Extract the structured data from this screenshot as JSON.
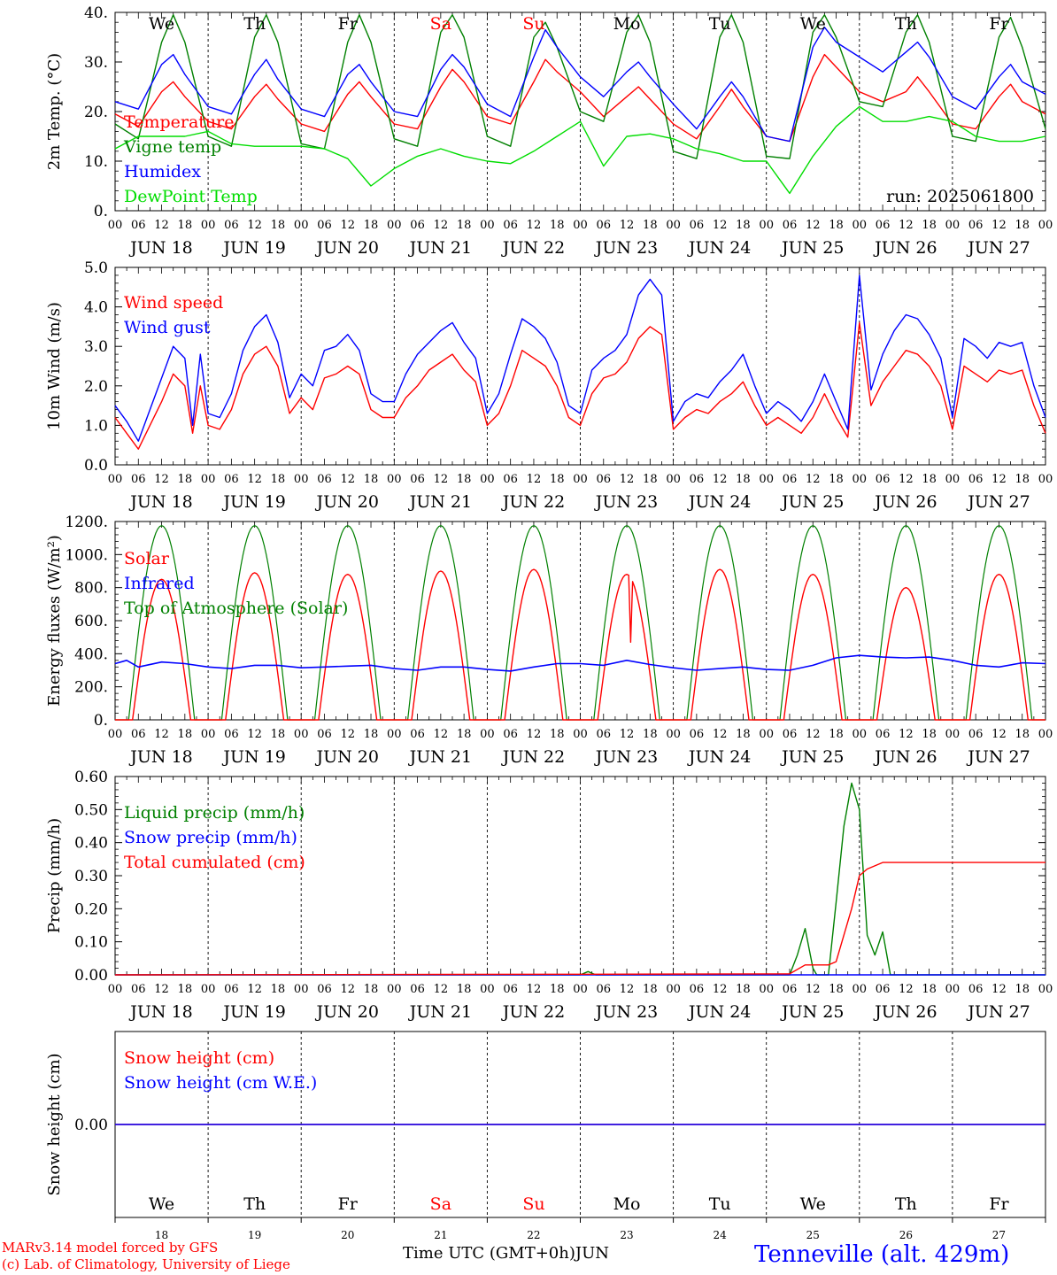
{
  "colors": {
    "red": "#ff0000",
    "green": "#008000",
    "blue": "#0000ff",
    "lime": "#00dd00",
    "weekend": "#ff0000",
    "weekday": "#000000"
  },
  "hour_labels": [
    "00",
    "06",
    "12",
    "18"
  ],
  "final_hour_label": "00",
  "date_labels": [
    "JUN 18",
    "JUN 19",
    "JUN 20",
    "JUN 21",
    "JUN 22",
    "JUN 23",
    "JUN 24",
    "JUN 25",
    "JUN 26",
    "JUN 27"
  ],
  "day_names": [
    "We",
    "Th",
    "Fr",
    "Sa",
    "Su",
    "Mo",
    "Tu",
    "We",
    "Th",
    "Fr"
  ],
  "weekend_flags": [
    false,
    false,
    false,
    true,
    true,
    false,
    false,
    false,
    false,
    false
  ],
  "day_numbers": [
    "18",
    "19",
    "20",
    "21",
    "22",
    "23",
    "24",
    "25",
    "26",
    "27"
  ],
  "run_label": "run: 2025061800",
  "footer": {
    "model": "MARv3.14 model forced by GFS",
    "lab": "(c) Lab. of Climatology, University of Liege",
    "xlabel": "Time UTC (GMT+0h)",
    "month": "JUN",
    "station": "Tenneville (alt. 429m)"
  },
  "chart_data": [
    {
      "type": "line",
      "ylabel": "2m Temp. (°C)",
      "ylim": [
        0,
        40
      ],
      "yticks": [
        "0.",
        "10.",
        "20.",
        "30.",
        "40."
      ],
      "series": [
        {
          "name": "Temperature",
          "color": "red",
          "x": [
            0,
            6,
            12,
            15,
            18,
            24,
            30,
            36,
            39,
            42,
            48,
            54,
            60,
            63,
            66,
            72,
            78,
            84,
            87,
            90,
            96,
            102,
            108,
            111,
            114,
            120,
            126,
            132,
            135,
            138,
            144,
            150,
            156,
            159,
            162,
            168,
            174,
            180,
            183,
            186,
            192,
            198,
            204,
            207,
            210,
            216,
            222,
            228,
            231,
            234,
            240
          ],
          "y": [
            19.5,
            17,
            24,
            26,
            23,
            18,
            16.5,
            23,
            25.5,
            22.5,
            17.5,
            16,
            23.5,
            26,
            23,
            17.5,
            16.5,
            25,
            28.5,
            26,
            19,
            17.5,
            26,
            30.5,
            28,
            24,
            19,
            23,
            25,
            22.5,
            17.5,
            14.5,
            21,
            24.5,
            21,
            15,
            14,
            27,
            31.5,
            29,
            24,
            22,
            24,
            27,
            24,
            17.5,
            16.5,
            23,
            25.5,
            22,
            19.5
          ]
        },
        {
          "name": "Vigne temp",
          "color": "green",
          "x": [
            0,
            6,
            12,
            15,
            18,
            24,
            30,
            36,
            39,
            42,
            48,
            54,
            60,
            63,
            66,
            72,
            78,
            84,
            87,
            90,
            96,
            102,
            108,
            111,
            114,
            120,
            126,
            132,
            135,
            138,
            144,
            150,
            156,
            159,
            162,
            168,
            174,
            180,
            183,
            186,
            192,
            198,
            204,
            207,
            210,
            216,
            222,
            228,
            231,
            234,
            240
          ],
          "y": [
            17.5,
            14.5,
            34,
            39.5,
            34,
            15,
            13,
            35,
            39.5,
            34,
            13.5,
            12.5,
            34,
            39.5,
            34,
            14.5,
            13,
            36,
            39.5,
            35,
            15,
            13,
            35,
            38,
            33,
            20,
            18,
            36,
            39.5,
            34,
            12,
            10.5,
            35,
            39.5,
            34,
            11,
            10.5,
            36,
            39.5,
            35,
            22,
            21,
            36,
            39.5,
            34,
            15,
            14,
            35,
            39,
            33,
            16.5
          ]
        },
        {
          "name": "Humidex",
          "color": "blue",
          "x": [
            0,
            6,
            12,
            15,
            18,
            24,
            30,
            36,
            39,
            42,
            48,
            54,
            60,
            63,
            66,
            72,
            78,
            84,
            87,
            90,
            96,
            102,
            108,
            111,
            114,
            120,
            126,
            132,
            135,
            138,
            144,
            150,
            156,
            159,
            162,
            168,
            174,
            180,
            183,
            186,
            192,
            198,
            204,
            207,
            210,
            216,
            222,
            228,
            231,
            234,
            240
          ],
          "y": [
            22,
            20.5,
            29.5,
            31.5,
            27.5,
            21,
            19.5,
            27.5,
            30.5,
            26.5,
            20.5,
            19,
            27.5,
            29.5,
            26,
            20,
            19,
            28.5,
            31.5,
            29,
            21.5,
            19,
            31,
            36.5,
            33,
            27,
            23,
            28,
            30,
            27,
            21.5,
            16.5,
            23,
            26,
            23,
            15,
            14,
            33,
            37,
            34,
            31,
            28,
            32,
            34,
            31,
            23,
            20.5,
            27,
            29.5,
            26,
            23.5
          ]
        },
        {
          "name": "DewPoint Temp",
          "color": "lime",
          "x": [
            0,
            6,
            12,
            18,
            24,
            30,
            36,
            42,
            48,
            54,
            60,
            66,
            72,
            78,
            84,
            90,
            96,
            102,
            108,
            114,
            120,
            126,
            132,
            138,
            144,
            150,
            156,
            162,
            168,
            174,
            180,
            186,
            192,
            198,
            204,
            210,
            216,
            222,
            228,
            234,
            240
          ],
          "y": [
            12.5,
            15,
            15,
            15,
            16,
            13.5,
            13,
            13,
            13,
            12.5,
            10.5,
            5,
            8.5,
            11,
            12.5,
            11,
            10,
            9.5,
            12,
            15,
            18,
            9,
            15,
            15.5,
            14.5,
            12.5,
            11.5,
            10,
            10,
            3.5,
            11,
            17,
            21,
            18,
            18,
            19,
            18,
            15,
            14,
            14,
            15
          ]
        }
      ]
    },
    {
      "type": "line",
      "ylabel": "10m Wind (m/s)",
      "ylim": [
        0,
        5
      ],
      "yticks": [
        "0.0",
        "1.0",
        "2.0",
        "3.0",
        "4.0",
        "5.0"
      ],
      "series": [
        {
          "name": "Wind speed",
          "color": "red",
          "x": [
            0,
            3,
            6,
            9,
            12,
            15,
            18,
            20,
            22,
            24,
            27,
            30,
            33,
            36,
            39,
            42,
            45,
            48,
            51,
            54,
            57,
            60,
            63,
            66,
            69,
            72,
            75,
            78,
            81,
            84,
            87,
            90,
            93,
            96,
            99,
            102,
            105,
            108,
            111,
            114,
            117,
            120,
            123,
            126,
            129,
            132,
            135,
            138,
            141,
            144,
            147,
            150,
            153,
            156,
            159,
            162,
            165,
            168,
            171,
            174,
            177,
            180,
            183,
            186,
            189,
            192,
            195,
            198,
            201,
            204,
            207,
            210,
            213,
            216,
            219,
            222,
            225,
            228,
            231,
            234,
            237,
            240
          ],
          "y": [
            1.2,
            0.8,
            0.4,
            1.0,
            1.6,
            2.3,
            2.0,
            0.8,
            2.0,
            1.0,
            0.9,
            1.4,
            2.3,
            2.8,
            3.0,
            2.5,
            1.3,
            1.7,
            1.4,
            2.2,
            2.3,
            2.5,
            2.3,
            1.4,
            1.2,
            1.2,
            1.7,
            2.0,
            2.4,
            2.6,
            2.8,
            2.4,
            2.1,
            1.0,
            1.3,
            2.0,
            2.9,
            2.7,
            2.5,
            2.0,
            1.2,
            1.0,
            1.8,
            2.2,
            2.3,
            2.6,
            3.2,
            3.5,
            3.3,
            0.9,
            1.2,
            1.4,
            1.3,
            1.6,
            1.8,
            2.1,
            1.5,
            1.0,
            1.2,
            1.0,
            0.8,
            1.2,
            1.8,
            1.2,
            0.7,
            3.6,
            1.5,
            2.1,
            2.5,
            2.9,
            2.8,
            2.5,
            2.0,
            0.9,
            2.5,
            2.3,
            2.1,
            2.4,
            2.3,
            2.4,
            1.5,
            0.8
          ]
        },
        {
          "name": "Wind gust",
          "color": "blue",
          "x": [
            0,
            3,
            6,
            9,
            12,
            15,
            18,
            20,
            22,
            24,
            27,
            30,
            33,
            36,
            39,
            42,
            45,
            48,
            51,
            54,
            57,
            60,
            63,
            66,
            69,
            72,
            75,
            78,
            81,
            84,
            87,
            90,
            93,
            96,
            99,
            102,
            105,
            108,
            111,
            114,
            117,
            120,
            123,
            126,
            129,
            132,
            135,
            138,
            141,
            144,
            147,
            150,
            153,
            156,
            159,
            162,
            165,
            168,
            171,
            174,
            177,
            180,
            183,
            186,
            189,
            192,
            195,
            198,
            201,
            204,
            207,
            210,
            213,
            216,
            219,
            222,
            225,
            228,
            231,
            234,
            237,
            240
          ],
          "y": [
            1.5,
            1.1,
            0.6,
            1.4,
            2.2,
            3.0,
            2.7,
            1.0,
            2.8,
            1.3,
            1.2,
            1.8,
            2.9,
            3.5,
            3.8,
            3.1,
            1.7,
            2.3,
            2.0,
            2.9,
            3.0,
            3.3,
            2.9,
            1.8,
            1.6,
            1.6,
            2.3,
            2.8,
            3.1,
            3.4,
            3.6,
            3.1,
            2.7,
            1.3,
            1.8,
            2.8,
            3.7,
            3.5,
            3.2,
            2.6,
            1.5,
            1.3,
            2.4,
            2.7,
            2.9,
            3.3,
            4.3,
            4.7,
            4.3,
            1.1,
            1.6,
            1.8,
            1.7,
            2.1,
            2.4,
            2.8,
            2.0,
            1.3,
            1.6,
            1.4,
            1.1,
            1.6,
            2.3,
            1.6,
            0.9,
            4.8,
            1.9,
            2.8,
            3.4,
            3.8,
            3.7,
            3.3,
            2.7,
            1.2,
            3.2,
            3.0,
            2.7,
            3.1,
            3.0,
            3.1,
            2.0,
            1.2
          ]
        }
      ]
    },
    {
      "type": "line",
      "ylabel": "Energy fluxes (W/m²)",
      "ylim": [
        0,
        1200
      ],
      "yticks": [
        "0.",
        "200.",
        "400.",
        "600.",
        "800.",
        "1000.",
        "1200."
      ],
      "series": [
        {
          "name": "Solar",
          "color": "red",
          "peaks": [
            850,
            890,
            880,
            900,
            910,
            880,
            910,
            880,
            800,
            880
          ],
          "dips": [
            {
              "x": 133,
              "y": 470
            }
          ]
        },
        {
          "name": "Infrared",
          "color": "blue",
          "x": [
            0,
            3,
            6,
            12,
            18,
            24,
            30,
            36,
            42,
            48,
            54,
            60,
            66,
            72,
            78,
            84,
            90,
            96,
            102,
            108,
            114,
            120,
            126,
            132,
            138,
            144,
            150,
            156,
            162,
            168,
            174,
            180,
            186,
            192,
            198,
            204,
            210,
            216,
            222,
            228,
            234,
            240
          ],
          "y": [
            340,
            360,
            320,
            350,
            340,
            320,
            310,
            330,
            330,
            315,
            320,
            325,
            330,
            310,
            300,
            320,
            320,
            305,
            295,
            320,
            340,
            340,
            330,
            360,
            335,
            315,
            300,
            310,
            320,
            305,
            300,
            330,
            375,
            390,
            380,
            375,
            380,
            360,
            330,
            320,
            345,
            340
          ]
        },
        {
          "name": "Top of Atmosphere (Solar)",
          "color": "green",
          "peak": 1175
        }
      ]
    },
    {
      "type": "line",
      "ylabel": "Precip (mm/h)",
      "ylim": [
        0,
        0.6
      ],
      "yticks": [
        "0.00",
        "0.10",
        "0.20",
        "0.30",
        "0.40",
        "0.50",
        "0.60"
      ],
      "series": [
        {
          "name": "Liquid precip (mm/h)",
          "color": "green",
          "x": [
            0,
            120,
            121,
            122,
            123,
            124,
            174,
            176,
            178,
            180,
            181,
            184,
            186,
            188,
            190,
            192,
            194,
            196,
            198,
            200,
            240
          ],
          "y": [
            0,
            0,
            0.005,
            0.01,
            0.005,
            0,
            0,
            0.06,
            0.14,
            0.02,
            0,
            0,
            0.22,
            0.45,
            0.58,
            0.5,
            0.12,
            0.06,
            0.13,
            0,
            0
          ]
        },
        {
          "name": "Snow precip (mm/h)",
          "color": "blue",
          "x": [
            0,
            240
          ],
          "y": [
            0,
            0
          ]
        },
        {
          "name": "Total cumulated (cm)",
          "color": "red",
          "x": [
            0,
            123,
            174,
            178,
            184,
            186,
            190,
            192,
            194,
            198,
            240
          ],
          "y": [
            0,
            0.002,
            0.003,
            0.03,
            0.03,
            0.04,
            0.2,
            0.3,
            0.32,
            0.34,
            0.34
          ]
        }
      ]
    },
    {
      "type": "line",
      "ylabel": "Snow height (cm)",
      "ylim": [
        -1,
        1
      ],
      "yticks": [
        "0.00"
      ],
      "series": [
        {
          "name": "Snow height (cm)",
          "color": "red",
          "x": [
            0,
            240
          ],
          "y": [
            0,
            0
          ]
        },
        {
          "name": "Snow height (cm W.E.)",
          "color": "blue",
          "x": [
            0,
            240
          ],
          "y": [
            0,
            0
          ]
        }
      ]
    }
  ]
}
